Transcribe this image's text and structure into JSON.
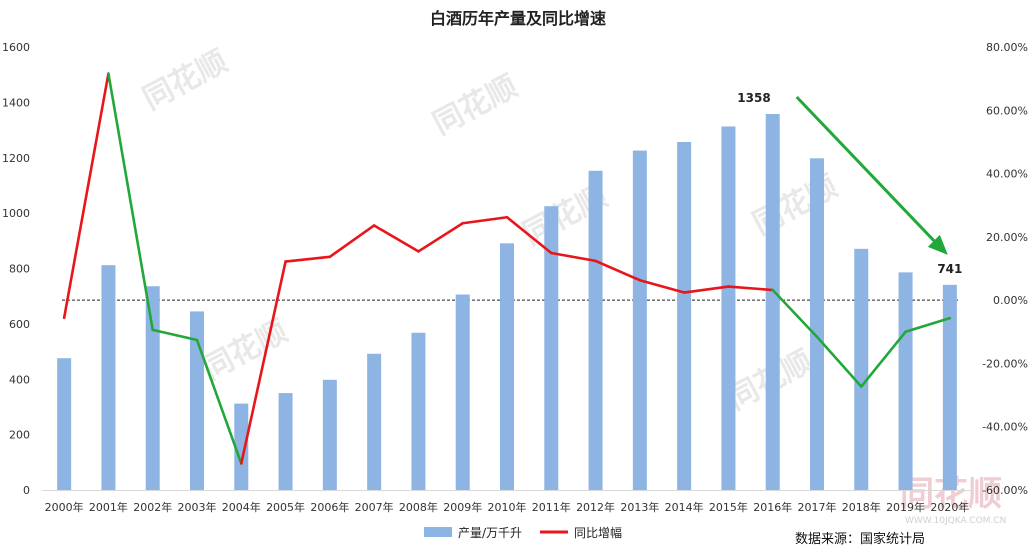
{
  "chart_data": {
    "type": "bar",
    "title": "白酒历年产量及同比增速",
    "categories": [
      "2000年",
      "2001年",
      "2002年",
      "2003年",
      "2004年",
      "2005年",
      "2006年",
      "2007年",
      "2008年",
      "2009年",
      "2010年",
      "2011年",
      "2012年",
      "2013年",
      "2014年",
      "2015年",
      "2016年",
      "2017年",
      "2018年",
      "2019年",
      "2020年"
    ],
    "series": [
      {
        "name": "产量/万千升",
        "axis": "left",
        "type": "bar",
        "color": "#8EB4E3",
        "values": [
          476,
          812,
          736,
          645,
          312,
          350,
          398,
          492,
          568,
          706,
          891,
          1025,
          1153,
          1226,
          1257,
          1313,
          1358,
          1198,
          871,
          786,
          741
        ]
      },
      {
        "name": "同比增幅",
        "axis": "right",
        "type": "line",
        "color": "#E8161B",
        "highlight_color": "#22A83A",
        "values": [
          -5.6,
          71.6,
          -9.4,
          -12.6,
          -51.6,
          12.2,
          13.7,
          23.6,
          15.4,
          24.3,
          26.2,
          14.9,
          12.4,
          6.3,
          2.4,
          4.3,
          3.2,
          -11.6,
          -27.3,
          -10.0,
          -5.7
        ]
      }
    ],
    "left_axis": {
      "min": 0,
      "max": 1600,
      "step": 200
    },
    "right_axis": {
      "min": -60,
      "max": 80,
      "step": 20,
      "labels": [
        "-60.00%",
        "-40.00%",
        "-20.00%",
        "0.00%",
        "20.00%",
        "40.00%",
        "60.00%",
        "80.00%"
      ]
    },
    "legend": {
      "position": "bottom"
    },
    "annotations": [
      {
        "label": "1358",
        "category": "2016年"
      },
      {
        "label": "741",
        "category": "2020年"
      }
    ]
  },
  "source_text": "数据来源：国家统计局",
  "watermark": {
    "brand": "同花顺",
    "url": "WWW.10JQKA.COM.CN"
  }
}
